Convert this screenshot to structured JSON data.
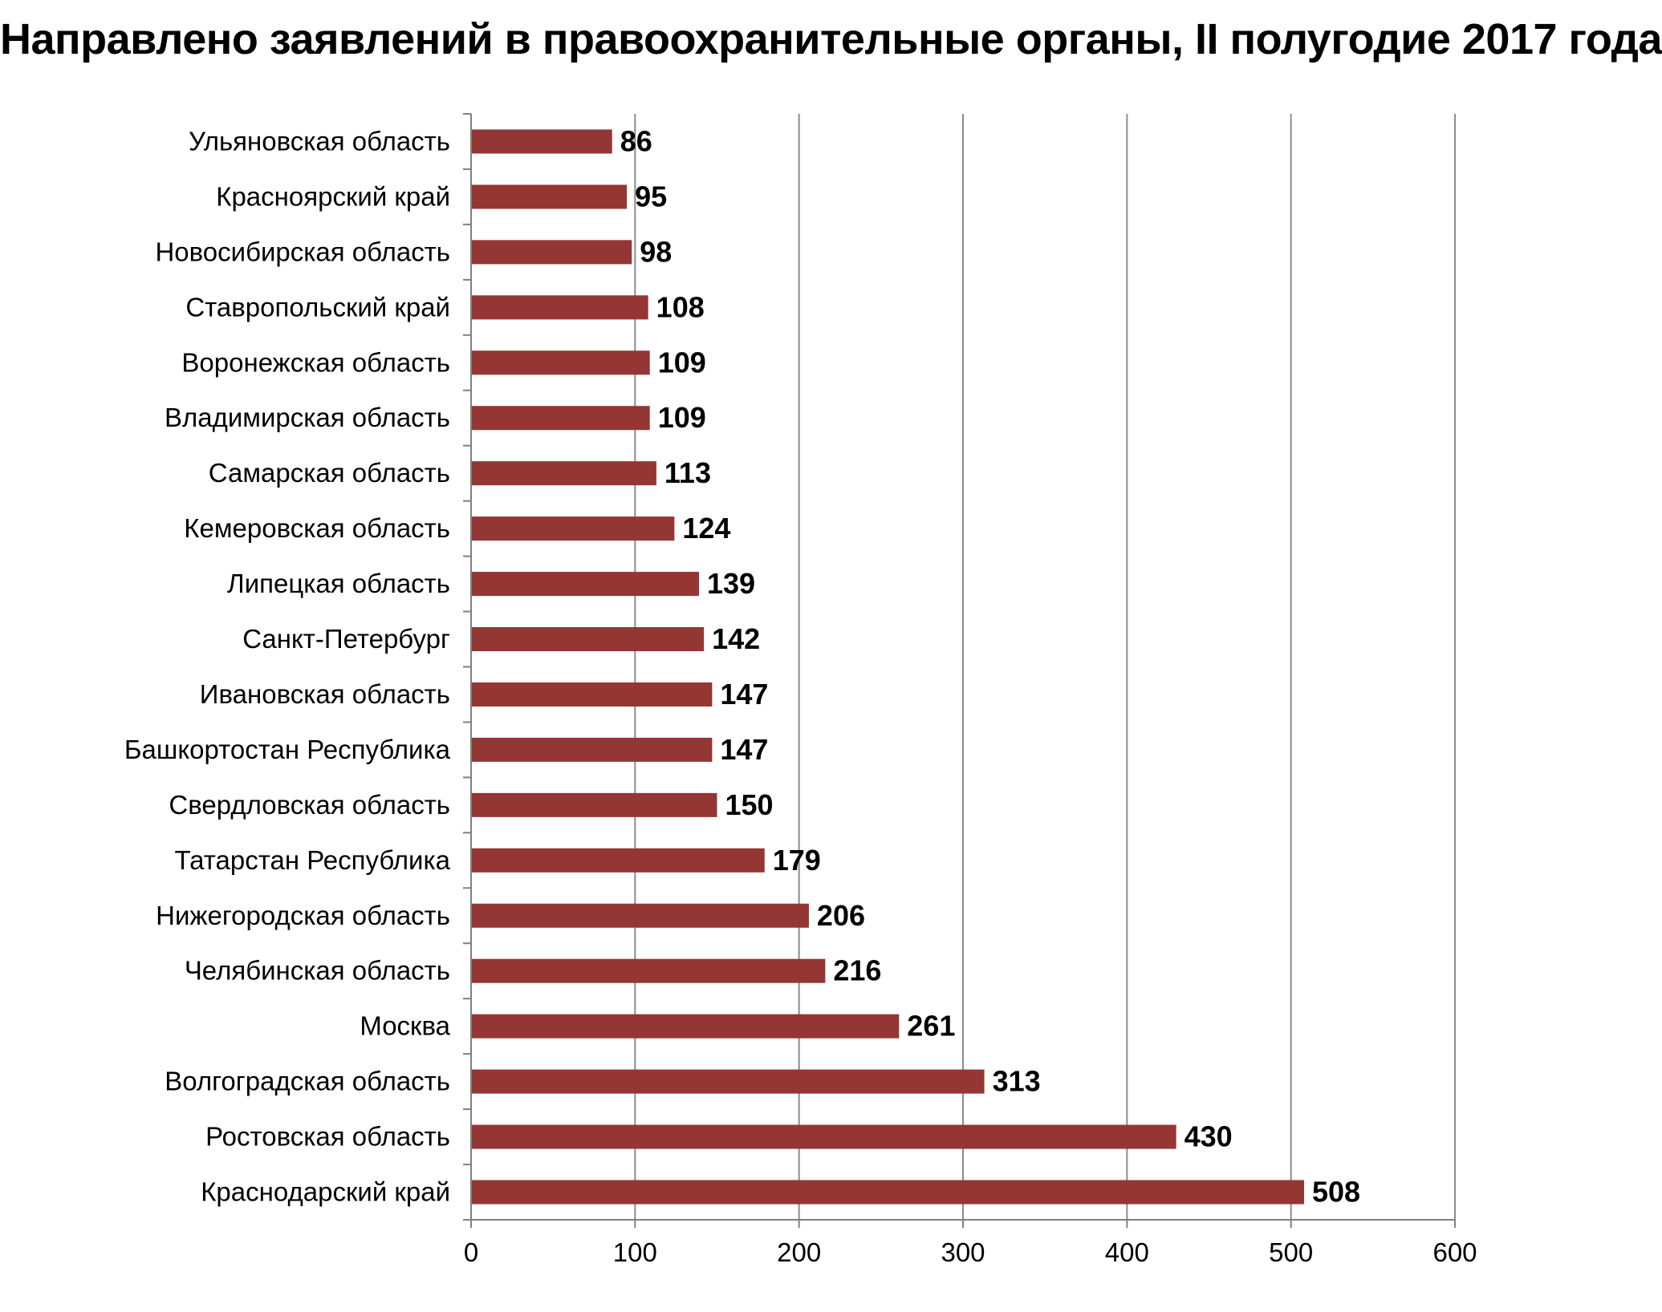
{
  "chart_data": {
    "type": "bar",
    "orientation": "horizontal",
    "title": "Направлено заявлений в правоохранительные органы, II полугодие 2017 года",
    "categories": [
      "Ульяновская область",
      "Красноярский край",
      "Новосибирская область",
      "Ставропольский край",
      "Воронежская область",
      "Владимирская область",
      "Самарская область",
      "Кемеровская область",
      "Липецкая область",
      "Санкт-Петербург",
      "Ивановская область",
      "Башкортостан Республика",
      "Свердловская область",
      "Татарстан Республика",
      "Нижегородская область",
      "Челябинская область",
      "Москва",
      "Волгоградская область",
      "Ростовская область",
      "Краснодарский край"
    ],
    "values": [
      86,
      95,
      98,
      108,
      109,
      109,
      113,
      124,
      139,
      142,
      147,
      147,
      150,
      179,
      206,
      216,
      261,
      313,
      430,
      508
    ],
    "xlim": [
      0,
      600
    ],
    "xticks": [
      "0",
      "100",
      "200",
      "300",
      "400",
      "500",
      "600"
    ],
    "grid": "vertical",
    "legend": "none",
    "colors": {
      "bar": "#943634",
      "grid": "#8c8c8c",
      "axis": "#808080"
    }
  }
}
